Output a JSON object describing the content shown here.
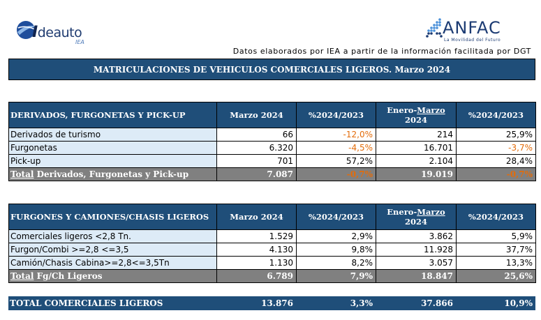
{
  "logos": {
    "left": {
      "icon": "ideauto-swoosh-icon",
      "text_main": "deauto",
      "text_initial": "I",
      "text_sub": "IEA"
    },
    "right": {
      "icon": "anfac-dots-icon",
      "text_main": "ANFAC",
      "tagline": "La Movilidad del Futuro"
    }
  },
  "source_note": "Datos elaborados por IEA a partir de la información facilitada por DGT",
  "main_title": "MATRICULACIONES DE VEHICULOS COMERCIALES LIGEROS. Marzo 2024",
  "section1": {
    "header": {
      "label": "DERIVADOS, FURGONETAS Y PICK-UP",
      "col1": "Marzo 2024",
      "col2": "%2024/2023",
      "col3_prefix": "Enero-",
      "col3_underlined": "Marzo",
      "col3_suffix": " 2024",
      "col4": "%2024/2023"
    },
    "rows": [
      {
        "name": "Derivados de turismo",
        "month": "66",
        "pct_month": "-12,0%",
        "ytd": "214",
        "pct_ytd": "25,9%"
      },
      {
        "name": "Furgonetas",
        "month": "6.320",
        "pct_month": "-4,5%",
        "ytd": "16.701",
        "pct_ytd": "-3,7%"
      },
      {
        "name": "Pick-up",
        "month": "701",
        "pct_month": "57,2%",
        "ytd": "2.104",
        "pct_ytd": "28,4%"
      }
    ],
    "total": {
      "prefix": "Total",
      "name": " Derivados, Furgonetas y Pick-up",
      "month": "7.087",
      "pct_month": "-0,7%",
      "ytd": "19.019",
      "pct_ytd": "-0,7%"
    }
  },
  "section2": {
    "header": {
      "label": "FURGONES Y CAMIONES/CHASIS LIGEROS",
      "col1": "Marzo 2024",
      "col2": "%2024/2023",
      "col3_prefix": "Enero-",
      "col3_underlined": "Marzo",
      "col3_suffix": " 2024",
      "col4": "%2024/2023"
    },
    "rows": [
      {
        "name": "Comerciales ligeros <2,8 Tn.",
        "month": "1.529",
        "pct_month": "2,9%",
        "ytd": "3.862",
        "pct_ytd": "5,9%"
      },
      {
        "name": "Furgon/Combi >=2,8 <=3,5",
        "month": "4.130",
        "pct_month": "9,8%",
        "ytd": "11.928",
        "pct_ytd": "37,7%"
      },
      {
        "name": "Camión/Chasis Cabina>=2,8<=3,5Tn",
        "month": "1.130",
        "pct_month": "8,2%",
        "ytd": "3.057",
        "pct_ytd": "13,3%"
      }
    ],
    "total": {
      "prefix": "Total",
      "name": " Fg/Ch Ligeros",
      "month": "6.789",
      "pct_month": "7,9%",
      "ytd": "18.847",
      "pct_ytd": "25,6%"
    }
  },
  "grand_total": {
    "name": "TOTAL  COMERCIALES LIGEROS",
    "month": "13.876",
    "pct_month": "3,3%",
    "ytd": "37.866",
    "pct_ytd": "10,9%"
  },
  "colors": {
    "header_blue": "#1f4e79",
    "row_label_bg": "#ddebf7",
    "total_gray": "#808080",
    "negative_orange": "#e36c0a"
  }
}
